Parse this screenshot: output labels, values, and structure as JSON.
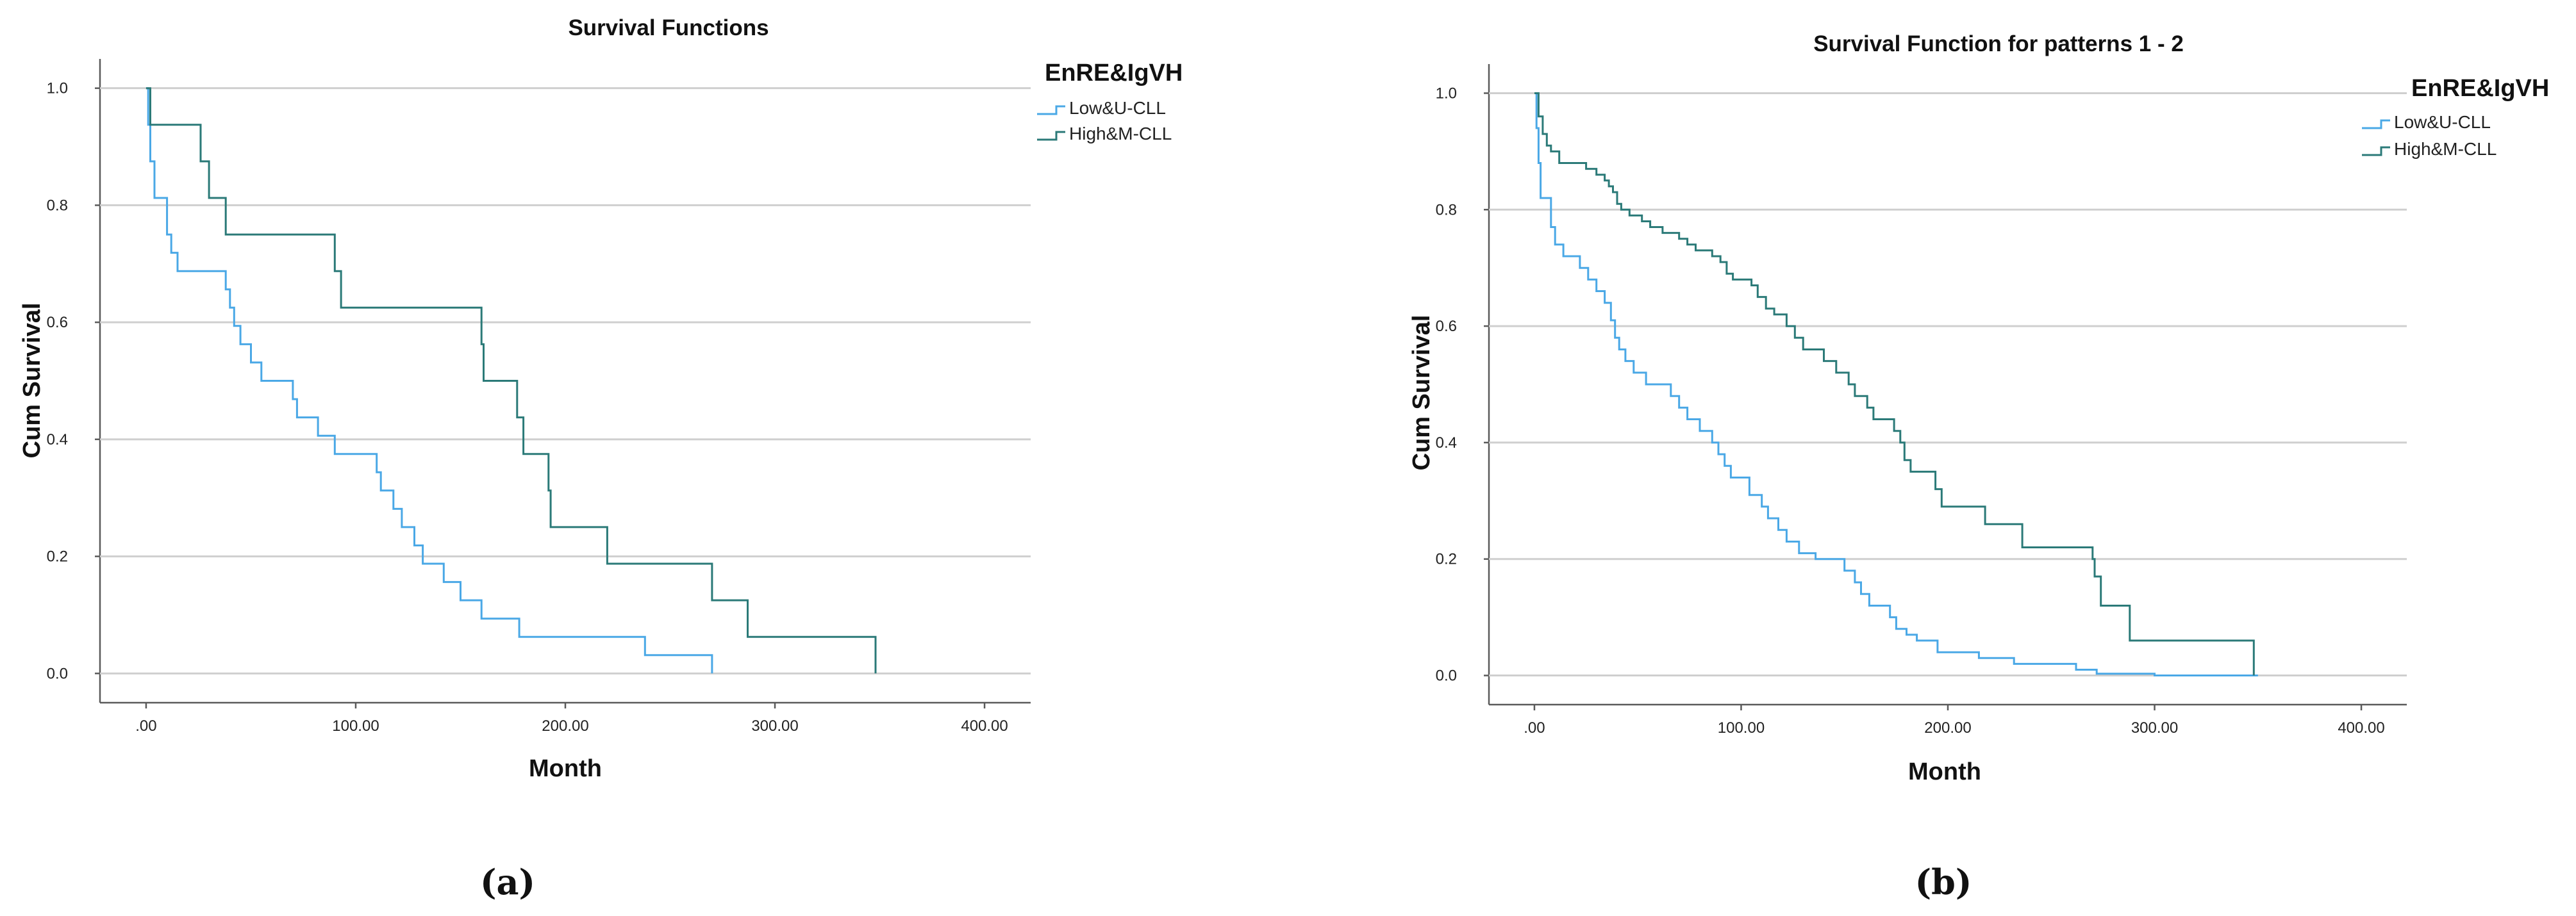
{
  "colors": {
    "low_u_cll": "#4aa8e6",
    "high_m_cll": "#2b7a78"
  },
  "chart_data": [
    {
      "type": "line",
      "panel_label": "(a)",
      "title": "Survival Functions",
      "xlabel": "Month",
      "ylabel": "Cum Survival",
      "xlim": [
        -22,
        422
      ],
      "ylim": [
        -0.05,
        1.05
      ],
      "x_ticks": [
        0,
        100,
        200,
        300,
        400
      ],
      "x_tick_labels": [
        ".00",
        "100.00",
        "200.00",
        "300.00",
        "400.00"
      ],
      "y_ticks": [
        0,
        0.2,
        0.4,
        0.6,
        0.8,
        1.0
      ],
      "y_tick_labels": [
        "0.0",
        "0.2",
        "0.4",
        "0.6",
        "0.8",
        "1.0"
      ],
      "grid": "horizontal",
      "legend_position": "outside-right",
      "legend_title": "EnRE&IgVH",
      "series": [
        {
          "name": "Low&U-CLL",
          "color_key": "low_u_cll",
          "points": [
            [
              0,
              1.0
            ],
            [
              1,
              0.9375
            ],
            [
              2,
              0.875
            ],
            [
              4,
              0.8125
            ],
            [
              10,
              0.75
            ],
            [
              12,
              0.71875
            ],
            [
              15,
              0.6875
            ],
            [
              38,
              0.65625
            ],
            [
              40,
              0.625
            ],
            [
              42,
              0.59375
            ],
            [
              45,
              0.5625
            ],
            [
              50,
              0.53125
            ],
            [
              55,
              0.5
            ],
            [
              70,
              0.46875
            ],
            [
              72,
              0.4375
            ],
            [
              82,
              0.40625
            ],
            [
              90,
              0.375
            ],
            [
              110,
              0.34375
            ],
            [
              112,
              0.3125
            ],
            [
              118,
              0.28125
            ],
            [
              122,
              0.25
            ],
            [
              128,
              0.21875
            ],
            [
              132,
              0.1875
            ],
            [
              142,
              0.15625
            ],
            [
              150,
              0.125
            ],
            [
              160,
              0.09375
            ],
            [
              178,
              0.0625
            ],
            [
              238,
              0.03125
            ],
            [
              270,
              0.0
            ]
          ]
        },
        {
          "name": "High&M-CLL",
          "color_key": "high_m_cll",
          "points": [
            [
              0,
              1.0
            ],
            [
              2,
              0.9375
            ],
            [
              26,
              0.875
            ],
            [
              30,
              0.8125
            ],
            [
              38,
              0.75
            ],
            [
              90,
              0.6875
            ],
            [
              93,
              0.625
            ],
            [
              160,
              0.5625
            ],
            [
              161,
              0.5
            ],
            [
              177,
              0.4375
            ],
            [
              180,
              0.375
            ],
            [
              192,
              0.3125
            ],
            [
              193,
              0.25
            ],
            [
              220,
              0.1875
            ],
            [
              270,
              0.125
            ],
            [
              287,
              0.0625
            ],
            [
              348,
              0.0
            ]
          ]
        }
      ]
    },
    {
      "type": "line",
      "panel_label": "(b)",
      "title": "Survival Function for patterns 1 - 2",
      "xlabel": "Month",
      "ylabel": "Cum Survival",
      "xlim": [
        -22,
        422
      ],
      "ylim": [
        -0.05,
        1.05
      ],
      "x_ticks": [
        0,
        100,
        200,
        300,
        400
      ],
      "x_tick_labels": [
        ".00",
        "100.00",
        "200.00",
        "300.00",
        "400.00"
      ],
      "y_ticks": [
        0,
        0.2,
        0.4,
        0.6,
        0.8,
        1.0
      ],
      "y_tick_labels": [
        "0.0",
        "0.2",
        "0.4",
        "0.6",
        "0.8",
        "1.0"
      ],
      "grid": "horizontal",
      "legend_position": "outside-right",
      "legend_title": "EnRE&IgVH",
      "series": [
        {
          "name": "Low&U-CLL",
          "color_key": "low_u_cll",
          "points": [
            [
              0,
              1.0
            ],
            [
              1,
              0.94
            ],
            [
              2,
              0.88
            ],
            [
              3,
              0.82
            ],
            [
              8,
              0.77
            ],
            [
              10,
              0.74
            ],
            [
              14,
              0.72
            ],
            [
              22,
              0.7
            ],
            [
              26,
              0.68
            ],
            [
              30,
              0.66
            ],
            [
              34,
              0.64
            ],
            [
              37,
              0.61
            ],
            [
              39,
              0.58
            ],
            [
              41,
              0.56
            ],
            [
              44,
              0.54
            ],
            [
              48,
              0.52
            ],
            [
              54,
              0.5
            ],
            [
              66,
              0.48
            ],
            [
              70,
              0.46
            ],
            [
              74,
              0.44
            ],
            [
              80,
              0.42
            ],
            [
              86,
              0.4
            ],
            [
              89,
              0.38
            ],
            [
              92,
              0.36
            ],
            [
              95,
              0.34
            ],
            [
              104,
              0.31
            ],
            [
              110,
              0.29
            ],
            [
              113,
              0.27
            ],
            [
              118,
              0.25
            ],
            [
              122,
              0.23
            ],
            [
              128,
              0.21
            ],
            [
              136,
              0.2
            ],
            [
              150,
              0.18
            ],
            [
              155,
              0.16
            ],
            [
              158,
              0.14
            ],
            [
              162,
              0.12
            ],
            [
              172,
              0.1
            ],
            [
              175,
              0.08
            ],
            [
              180,
              0.07
            ],
            [
              185,
              0.06
            ],
            [
              195,
              0.04
            ],
            [
              215,
              0.03
            ],
            [
              232,
              0.02
            ],
            [
              262,
              0.01
            ],
            [
              272,
              0.003
            ],
            [
              300,
              0.0
            ],
            [
              350,
              0.0
            ]
          ]
        },
        {
          "name": "High&M-CLL",
          "color_key": "high_m_cll",
          "points": [
            [
              0,
              1.0
            ],
            [
              2,
              0.96
            ],
            [
              4,
              0.93
            ],
            [
              6,
              0.91
            ],
            [
              8,
              0.9
            ],
            [
              12,
              0.88
            ],
            [
              25,
              0.87
            ],
            [
              30,
              0.86
            ],
            [
              34,
              0.85
            ],
            [
              36,
              0.84
            ],
            [
              38,
              0.83
            ],
            [
              40,
              0.81
            ],
            [
              42,
              0.8
            ],
            [
              46,
              0.79
            ],
            [
              52,
              0.78
            ],
            [
              56,
              0.77
            ],
            [
              62,
              0.76
            ],
            [
              70,
              0.75
            ],
            [
              74,
              0.74
            ],
            [
              78,
              0.73
            ],
            [
              86,
              0.72
            ],
            [
              90,
              0.71
            ],
            [
              93,
              0.69
            ],
            [
              96,
              0.68
            ],
            [
              105,
              0.67
            ],
            [
              108,
              0.65
            ],
            [
              112,
              0.63
            ],
            [
              116,
              0.62
            ],
            [
              122,
              0.6
            ],
            [
              126,
              0.58
            ],
            [
              130,
              0.56
            ],
            [
              140,
              0.54
            ],
            [
              146,
              0.52
            ],
            [
              152,
              0.5
            ],
            [
              155,
              0.48
            ],
            [
              161,
              0.46
            ],
            [
              164,
              0.44
            ],
            [
              174,
              0.42
            ],
            [
              177,
              0.4
            ],
            [
              179,
              0.37
            ],
            [
              182,
              0.35
            ],
            [
              194,
              0.32
            ],
            [
              197,
              0.29
            ],
            [
              218,
              0.26
            ],
            [
              236,
              0.22
            ],
            [
              270,
              0.2
            ],
            [
              271,
              0.17
            ],
            [
              274,
              0.12
            ],
            [
              288,
              0.06
            ],
            [
              348,
              0.0
            ]
          ]
        }
      ]
    }
  ]
}
